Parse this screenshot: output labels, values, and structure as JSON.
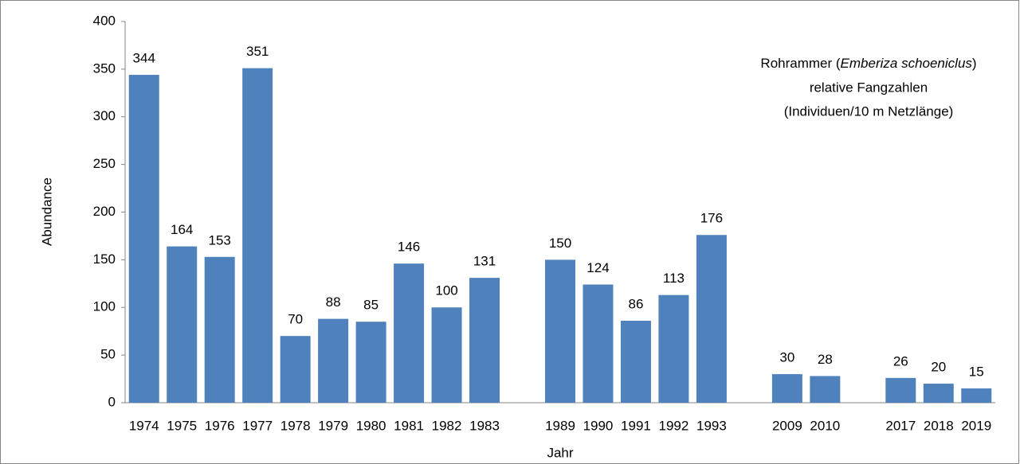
{
  "chart_data": {
    "type": "bar",
    "annotation": {
      "line1": [
        "Rohrammer (",
        "Emberiza schoeniclus",
        ")"
      ],
      "line2": "relative Fangzahlen",
      "line3": "(Individuen/10 m Netzlänge)"
    },
    "x_label": "Jahr",
    "y_label": "Abundance",
    "categories": [
      "1974",
      "1975",
      "1976",
      "1977",
      "1978",
      "1979",
      "1980",
      "1981",
      "1982",
      "1983",
      null,
      "1989",
      "1990",
      "1991",
      "1992",
      "1993",
      null,
      "2009",
      "2010",
      null,
      "2017",
      "2018",
      "2019"
    ],
    "values": [
      344,
      164,
      153,
      351,
      70,
      88,
      85,
      146,
      100,
      131,
      null,
      150,
      124,
      86,
      113,
      176,
      null,
      30,
      28,
      null,
      26,
      20,
      15
    ],
    "color": "#4f81bd",
    "ylim": [
      0,
      400
    ],
    "yticks": [
      0,
      50,
      100,
      150,
      200,
      250,
      300,
      350,
      400
    ],
    "grid": false
  }
}
